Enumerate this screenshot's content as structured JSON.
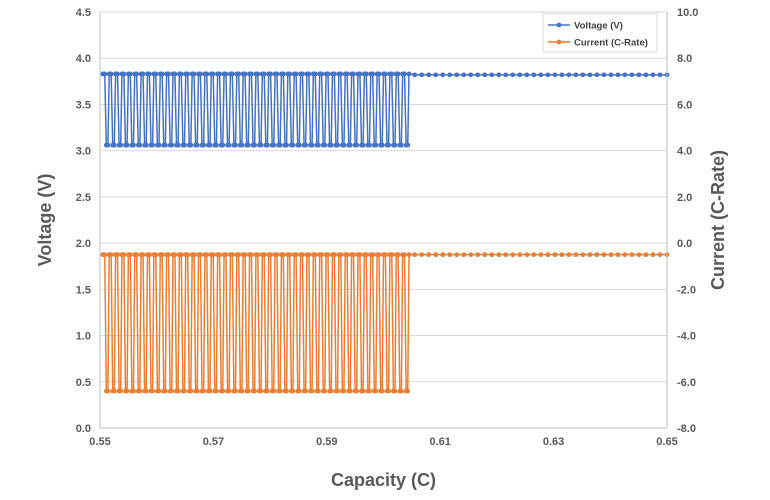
{
  "chart_data": {
    "type": "line",
    "xlabel": "Capacity (C)",
    "ylabel": "Voltage (V)",
    "y2label": "Current (C-Rate)",
    "xlim": [
      0.55,
      0.65
    ],
    "ylim": [
      0.0,
      4.5
    ],
    "y2lim": [
      -8.0,
      10.0
    ],
    "x_ticks": [
      "0.55",
      "0.57",
      "0.59",
      "0.61",
      "0.63",
      "0.65"
    ],
    "y_ticks": [
      "0.0",
      "0.5",
      "1.0",
      "1.5",
      "2.0",
      "2.5",
      "3.0",
      "3.5",
      "4.0",
      "4.5"
    ],
    "y2_ticks": [
      "-8.0",
      "-6.0",
      "-4.0",
      "-2.0",
      "0.0",
      "2.0",
      "4.0",
      "6.0",
      "8.0",
      "10.0"
    ],
    "grid": "horizontal",
    "legend_position": "top-right",
    "pulse_region": {
      "x_start": 0.5505,
      "x_end": 0.6045,
      "pulse_count": 48,
      "voltage_high": 3.83,
      "voltage_low": 3.06,
      "current_high": -0.5,
      "current_low": -6.4
    },
    "steady_region": {
      "x_start": 0.6055,
      "x_end": 0.65,
      "voltage": 3.82,
      "current": -0.5
    },
    "series": [
      {
        "name": "Voltage (V)",
        "axis": "left",
        "color": "#4472C4"
      },
      {
        "name": "Current (C-Rate)",
        "axis": "right",
        "color": "#ED7D31"
      }
    ]
  }
}
